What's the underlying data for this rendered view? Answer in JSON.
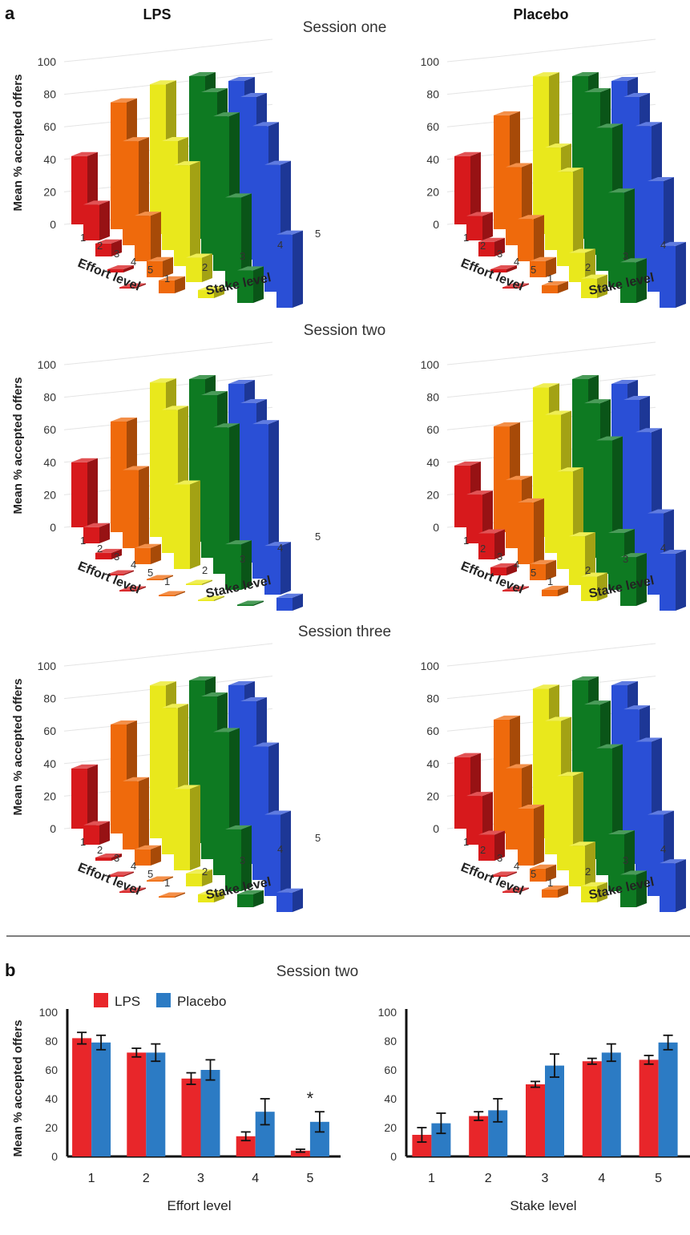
{
  "panel_a": {
    "label": "a",
    "col_titles": [
      "LPS",
      "Placebo"
    ],
    "sessions": [
      "Session one",
      "Session two",
      "Session three"
    ],
    "ylabel": "Mean % accepted offers",
    "yticks": [
      "0",
      "20",
      "40",
      "60",
      "80",
      "100"
    ],
    "effort_label": "Effort level",
    "stake_label": "Stake level",
    "level_ticks": [
      "1",
      "2",
      "3",
      "4",
      "5"
    ]
  },
  "panel_b": {
    "label": "b",
    "session_title": "Session two",
    "legend": [
      "LPS",
      "Placebo"
    ],
    "ylabel": "Mean % accepted offers",
    "yticks": [
      "0",
      "20",
      "40",
      "60",
      "80",
      "100"
    ],
    "annotation": "*"
  },
  "colors": {
    "stake1": "#d7191c",
    "stake2": "#ef6a0c",
    "stake3": "#e9e81c",
    "stake4": "#0e7a22",
    "stake5": "#2a4fd6",
    "lps": "#e8262a",
    "placebo": "#2c7bc4"
  },
  "chart_data": [
    {
      "type": "bar3d",
      "group": "LPS",
      "session": "Session one",
      "xlabel": "Effort level",
      "zlabel": "Stake level",
      "ylabel": "Mean % accepted offers",
      "ylim": [
        0,
        100
      ],
      "effort_levels": [
        1,
        2,
        3,
        4,
        5
      ],
      "stake_levels": [
        1,
        2,
        3,
        4,
        5
      ],
      "values": [
        [
          42,
          78,
          92,
          100,
          100
        ],
        [
          22,
          64,
          67,
          100,
          100
        ],
        [
          8,
          28,
          62,
          95,
          92
        ],
        [
          2,
          10,
          15,
          55,
          78
        ],
        [
          0,
          8,
          5,
          20,
          45
        ]
      ]
    },
    {
      "type": "bar3d",
      "group": "Placebo",
      "session": "Session one",
      "xlabel": "Effort level",
      "zlabel": "Stake level",
      "ylabel": "Mean % accepted offers",
      "ylim": [
        0,
        100
      ],
      "effort_levels": [
        1,
        2,
        3,
        4,
        5
      ],
      "stake_levels": [
        1,
        2,
        3,
        4,
        5
      ],
      "values": [
        [
          42,
          70,
          97,
          100,
          100
        ],
        [
          15,
          48,
          63,
          100,
          100
        ],
        [
          9,
          26,
          58,
          88,
          92
        ],
        [
          2,
          10,
          18,
          58,
          68
        ],
        [
          0,
          5,
          12,
          25,
          38
        ]
      ]
    },
    {
      "type": "bar3d",
      "group": "LPS",
      "session": "Session two",
      "xlabel": "Effort level",
      "zlabel": "Stake level",
      "ylabel": "Mean % accepted offers",
      "ylim": [
        0,
        100
      ],
      "effort_levels": [
        1,
        2,
        3,
        4,
        5
      ],
      "stake_levels": [
        1,
        2,
        3,
        4,
        5
      ],
      "values": [
        [
          40,
          68,
          95,
          100,
          100
        ],
        [
          10,
          48,
          88,
          100,
          98
        ],
        [
          4,
          10,
          52,
          90,
          95
        ],
        [
          0,
          0,
          0,
          28,
          30
        ],
        [
          0,
          0,
          0,
          0,
          8
        ]
      ]
    },
    {
      "type": "bar3d",
      "group": "Placebo",
      "session": "Session two",
      "xlabel": "Effort level",
      "zlabel": "Stake level",
      "ylabel": "Mean % accepted offers",
      "ylim": [
        0,
        100
      ],
      "effort_levels": [
        1,
        2,
        3,
        4,
        5
      ],
      "stake_levels": [
        1,
        2,
        3,
        4,
        5
      ],
      "values": [
        [
          38,
          65,
          92,
          100,
          100
        ],
        [
          30,
          42,
          85,
          95,
          100
        ],
        [
          16,
          38,
          60,
          82,
          90
        ],
        [
          5,
          10,
          30,
          35,
          50
        ],
        [
          0,
          4,
          15,
          30,
          35
        ]
      ]
    },
    {
      "type": "bar3d",
      "group": "LPS",
      "session": "Session three",
      "xlabel": "Effort level",
      "zlabel": "Stake level",
      "ylabel": "Mean % accepted offers",
      "ylim": [
        0,
        100
      ],
      "effort_levels": [
        1,
        2,
        3,
        4,
        5
      ],
      "stake_levels": [
        1,
        2,
        3,
        4,
        5
      ],
      "values": [
        [
          37,
          67,
          94,
          100,
          100
        ],
        [
          12,
          42,
          90,
          100,
          100
        ],
        [
          2,
          10,
          50,
          88,
          82
        ],
        [
          0,
          0,
          8,
          38,
          50
        ],
        [
          0,
          0,
          5,
          8,
          12
        ]
      ]
    },
    {
      "type": "bar3d",
      "group": "Placebo",
      "session": "Session three",
      "xlabel": "Effort level",
      "zlabel": "Stake level",
      "ylabel": "Mean % accepted offers",
      "ylim": [
        0,
        100
      ],
      "effort_levels": [
        1,
        2,
        3,
        4,
        5
      ],
      "stake_levels": [
        1,
        2,
        3,
        4,
        5
      ],
      "values": [
        [
          44,
          70,
          92,
          100,
          100
        ],
        [
          30,
          50,
          82,
          95,
          95
        ],
        [
          16,
          35,
          58,
          78,
          85
        ],
        [
          0,
          8,
          25,
          35,
          50
        ],
        [
          0,
          5,
          10,
          20,
          30
        ]
      ]
    },
    {
      "type": "bar",
      "session": "Session two",
      "xlabel": "Effort level",
      "ylabel": "Mean % accepted offers",
      "ylim": [
        0,
        100
      ],
      "categories": [
        "1",
        "2",
        "3",
        "4",
        "5"
      ],
      "series": [
        {
          "name": "LPS",
          "values": [
            82,
            72,
            54,
            14,
            4
          ],
          "errors": [
            4,
            3,
            4,
            3,
            1
          ]
        },
        {
          "name": "Placebo",
          "values": [
            79,
            72,
            60,
            31,
            24
          ],
          "errors": [
            5,
            6,
            7,
            9,
            7
          ]
        }
      ],
      "annotations": [
        {
          "category": "5",
          "text": "*"
        }
      ]
    },
    {
      "type": "bar",
      "session": "Session two",
      "xlabel": "Stake level",
      "ylabel": "",
      "ylim": [
        0,
        100
      ],
      "categories": [
        "1",
        "2",
        "3",
        "4",
        "5"
      ],
      "series": [
        {
          "name": "LPS",
          "values": [
            15,
            28,
            50,
            66,
            67
          ],
          "errors": [
            5,
            3,
            2,
            2,
            3
          ]
        },
        {
          "name": "Placebo",
          "values": [
            23,
            32,
            63,
            72,
            79
          ],
          "errors": [
            7,
            8,
            8,
            6,
            5
          ]
        }
      ]
    }
  ]
}
